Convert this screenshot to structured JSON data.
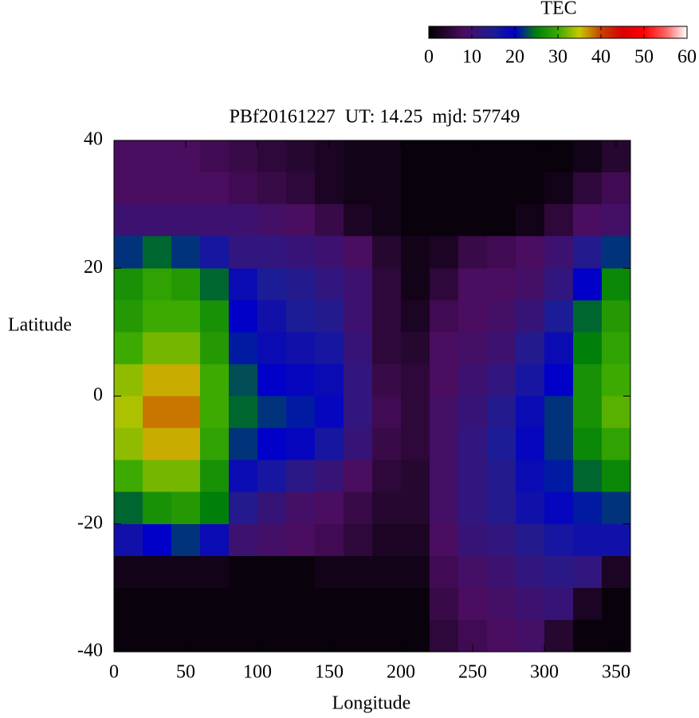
{
  "chart_data": {
    "type": "heatmap",
    "title": "PBf20161227  UT: 14.25  mjd: 57749",
    "x_label": "Longitude",
    "y_label": "Latitude",
    "colorbar_label": "TEC",
    "xlim": [
      0,
      360
    ],
    "xticks": [
      0,
      50,
      100,
      150,
      200,
      250,
      300,
      350
    ],
    "ylim": [
      -40,
      40
    ],
    "yticks": [
      -40,
      -20,
      0,
      20,
      40
    ],
    "zlim": [
      0,
      60
    ],
    "zticks": [
      0,
      10,
      20,
      30,
      40,
      50,
      60
    ],
    "colorscale": [
      {
        "value": 0,
        "color": "#000000"
      },
      {
        "value": 8,
        "color": "#4a0d5f"
      },
      {
        "value": 15,
        "color": "#1c1c96"
      },
      {
        "value": 20,
        "color": "#0000c8"
      },
      {
        "value": 25,
        "color": "#00800a"
      },
      {
        "value": 30,
        "color": "#3caa00"
      },
      {
        "value": 35,
        "color": "#c8c800"
      },
      {
        "value": 40,
        "color": "#c84000"
      },
      {
        "value": 45,
        "color": "#d80000"
      },
      {
        "value": 50,
        "color": "#ff0000"
      },
      {
        "value": 55,
        "color": "#ff6060"
      },
      {
        "value": 60,
        "color": "#ffffff"
      }
    ],
    "x": [
      10,
      30,
      50,
      70,
      90,
      110,
      130,
      150,
      170,
      190,
      210,
      230,
      250,
      270,
      290,
      310,
      330,
      350
    ],
    "y": [
      37.5,
      32.5,
      27.5,
      22.5,
      17.5,
      12.5,
      7.5,
      2.5,
      -2.5,
      -7.5,
      -12.5,
      -17.5,
      -22.5,
      -27.5,
      -32.5,
      -37.5
    ],
    "z": [
      [
        8,
        8,
        8,
        7,
        6,
        5,
        4,
        3,
        2,
        2,
        1,
        1,
        1,
        1,
        1,
        1,
        2,
        4
      ],
      [
        8,
        8,
        8,
        8,
        7,
        6,
        5,
        3,
        2,
        2,
        1,
        1,
        1,
        1,
        1,
        2,
        5,
        7
      ],
      [
        10,
        10,
        10,
        10,
        10,
        9,
        8,
        6,
        3,
        2,
        1,
        1,
        1,
        1,
        2,
        5,
        8,
        9
      ],
      [
        22,
        24,
        22,
        16,
        12,
        12,
        11,
        10,
        8,
        4,
        2,
        3,
        6,
        7,
        8,
        10,
        14,
        22
      ],
      [
        27,
        29,
        28,
        24,
        18,
        15,
        14,
        12,
        10,
        5,
        2,
        5,
        8,
        8,
        9,
        12,
        20,
        26
      ],
      [
        28,
        30,
        30,
        27,
        20,
        17,
        15,
        14,
        10,
        5,
        3,
        7,
        8,
        9,
        11,
        15,
        24,
        28
      ],
      [
        30,
        32,
        32,
        28,
        21,
        18,
        17,
        16,
        11,
        5,
        4,
        8,
        9,
        10,
        14,
        18,
        25,
        29
      ],
      [
        33,
        36,
        36,
        30,
        23,
        20,
        19,
        18,
        12,
        6,
        5,
        8,
        10,
        12,
        16,
        20,
        27,
        30
      ],
      [
        34,
        38,
        38,
        30,
        24,
        22,
        21,
        19,
        12,
        7,
        5,
        9,
        11,
        14,
        18,
        22,
        27,
        31
      ],
      [
        33,
        36,
        36,
        29,
        22,
        20,
        19,
        16,
        11,
        6,
        5,
        9,
        12,
        15,
        19,
        22,
        26,
        29
      ],
      [
        30,
        32,
        32,
        27,
        18,
        16,
        13,
        11,
        8,
        5,
        4,
        9,
        12,
        14,
        18,
        21,
        24,
        26
      ],
      [
        24,
        27,
        28,
        25,
        14,
        11,
        9,
        8,
        6,
        4,
        4,
        9,
        12,
        14,
        17,
        19,
        21,
        22
      ],
      [
        17,
        20,
        22,
        18,
        10,
        9,
        8,
        7,
        5,
        3,
        3,
        8,
        11,
        12,
        14,
        16,
        17,
        17
      ],
      [
        2,
        2,
        2,
        2,
        1,
        1,
        1,
        2,
        2,
        2,
        2,
        7,
        9,
        10,
        12,
        13,
        12,
        3
      ],
      [
        1,
        1,
        1,
        1,
        1,
        1,
        1,
        1,
        1,
        1,
        1,
        6,
        8,
        9,
        10,
        11,
        3,
        1
      ],
      [
        1,
        1,
        1,
        1,
        1,
        1,
        1,
        1,
        1,
        1,
        1,
        5,
        7,
        8,
        9,
        4,
        1,
        1
      ]
    ]
  }
}
